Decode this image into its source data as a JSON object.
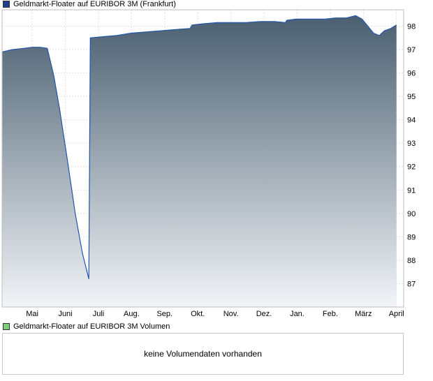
{
  "legend_main": {
    "label": "Geldmarkt-Floater auf EURIBOR 3M (Frankfurt)",
    "color": "#1f3f8f"
  },
  "legend_volume": {
    "label": "Geldmarkt-Floater auf EURIBOR 3M Volumen",
    "color": "#7ccd7c"
  },
  "volume_message": "keine Volumendaten vorhanden",
  "chart_data": {
    "type": "area",
    "title": "",
    "xlabel": "",
    "ylabel": "",
    "ylim": [
      86,
      98.7
    ],
    "yticks": [
      87,
      88,
      89,
      90,
      91,
      92,
      93,
      94,
      95,
      96,
      97,
      98
    ],
    "x_tick_labels": [
      "Mai",
      "Juni",
      "Juli",
      "Aug.",
      "Sep.",
      "Okt.",
      "Nov.",
      "Dez.",
      "Jan.",
      "Feb.",
      "März",
      "April"
    ],
    "grid": true,
    "line_color": "#2255aa",
    "fill_top_color": "#4a5f70",
    "fill_bottom_color": "#f2f4f7",
    "series": [
      {
        "values": [
          [
            0,
            96.9
          ],
          [
            1.5,
            97.0
          ],
          [
            3,
            97.05
          ],
          [
            4.2,
            97.1
          ],
          [
            5.3,
            97.1
          ],
          [
            6.3,
            97.05
          ],
          [
            7.2,
            95.9
          ],
          [
            8.0,
            94.5
          ],
          [
            9.0,
            92.5
          ],
          [
            10.2,
            90.0
          ],
          [
            11.2,
            88.3
          ],
          [
            12.1,
            87.2
          ],
          [
            12.3,
            97.5
          ],
          [
            14,
            97.55
          ],
          [
            16,
            97.6
          ],
          [
            18,
            97.7
          ],
          [
            20,
            97.75
          ],
          [
            22,
            97.8
          ],
          [
            24,
            97.85
          ],
          [
            26.2,
            97.9
          ],
          [
            26.5,
            98.05
          ],
          [
            28,
            98.1
          ],
          [
            30,
            98.15
          ],
          [
            32,
            98.15
          ],
          [
            34,
            98.15
          ],
          [
            36,
            98.2
          ],
          [
            38,
            98.2
          ],
          [
            39.5,
            98.15
          ],
          [
            39.7,
            98.25
          ],
          [
            41,
            98.3
          ],
          [
            43,
            98.3
          ],
          [
            45,
            98.3
          ],
          [
            46.5,
            98.35
          ],
          [
            48,
            98.35
          ],
          [
            49.3,
            98.45
          ],
          [
            50.2,
            98.3
          ],
          [
            51.0,
            98.0
          ],
          [
            51.8,
            97.7
          ],
          [
            52.6,
            97.6
          ],
          [
            53.3,
            97.8
          ],
          [
            54.2,
            97.9
          ],
          [
            55.0,
            98.05
          ]
        ]
      }
    ]
  }
}
